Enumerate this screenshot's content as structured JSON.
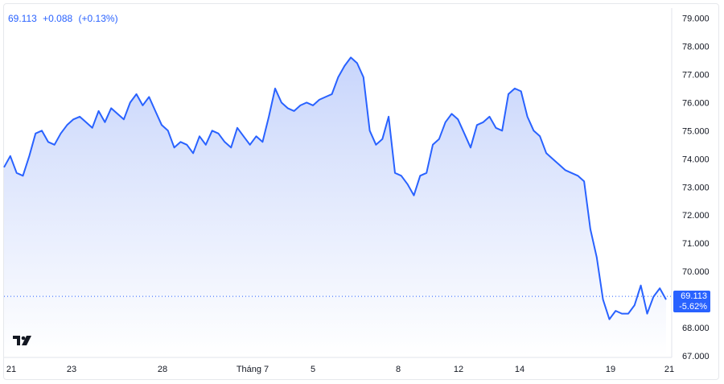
{
  "legend": {
    "last": "69.113",
    "change": "+0.088",
    "change_pct": "(+0.13%)"
  },
  "price_tag": {
    "value": "69.113",
    "pct": "-5.62%"
  },
  "logo": "tradingview-logo",
  "colors": {
    "line": "#2962ff",
    "fill_top": "#c5d3fb",
    "fill_bottom": "#ffffff",
    "tag": "#2962ff"
  },
  "chart_data": {
    "type": "area",
    "y_tick_labels": [
      "79.000",
      "78.000",
      "77.000",
      "76.000",
      "75.000",
      "74.000",
      "73.000",
      "72.000",
      "71.000",
      "70.000",
      "69.000",
      "68.000",
      "67.000"
    ],
    "x_tick_labels": [
      "21",
      "23",
      "28",
      "Tháng 7",
      "5",
      "8",
      "12",
      "14",
      "19",
      "21"
    ],
    "ylim": [
      67,
      79
    ],
    "y_axis_side": "right",
    "grid": false,
    "series": [
      {
        "values": [
          73.7,
          74.1,
          73.5,
          73.4,
          74.1,
          74.9,
          75.0,
          74.6,
          74.5,
          74.9,
          75.2,
          75.4,
          75.5,
          75.3,
          75.1,
          75.7,
          75.3,
          75.8,
          75.6,
          75.4,
          76.0,
          76.3,
          75.9,
          76.2,
          75.7,
          75.2,
          75.0,
          74.4,
          74.6,
          74.5,
          74.2,
          74.8,
          74.5,
          75.0,
          74.9,
          74.6,
          74.4,
          75.1,
          74.8,
          74.5,
          74.8,
          74.6,
          75.5,
          76.5,
          76.0,
          75.8,
          75.7,
          75.9,
          76.0,
          75.9,
          76.1,
          76.2,
          76.3,
          76.9,
          77.3,
          77.6,
          77.4,
          76.9,
          75.0,
          74.5,
          74.7,
          75.5,
          73.5,
          73.4,
          73.1,
          72.7,
          73.4,
          73.5,
          74.5,
          74.7,
          75.3,
          75.6,
          75.4,
          74.9,
          74.4,
          75.2,
          75.3,
          75.5,
          75.1,
          75.0,
          76.3,
          76.5,
          76.4,
          75.5,
          75.0,
          74.8,
          74.2,
          74.0,
          73.8,
          73.6,
          73.5,
          73.4,
          73.2,
          71.5,
          70.5,
          69.0,
          68.3,
          68.6,
          68.5,
          68.5,
          68.8,
          69.5,
          68.5,
          69.1,
          69.4,
          69.0
        ]
      }
    ]
  }
}
